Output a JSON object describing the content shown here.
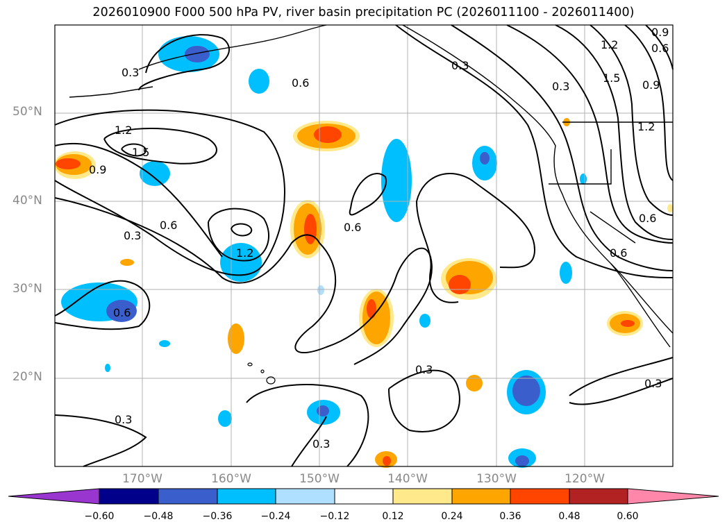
{
  "title": "2026010900 F000 500 hPa PV, river basin precipitation PC (2026011100 - 2026011400)",
  "lat_labels": [
    "50°N",
    "40°N",
    "30°N",
    "20°N"
  ],
  "lon_labels": [
    "170°W",
    "160°W",
    "150°W",
    "140°W",
    "130°W",
    "120°W"
  ],
  "colorbar": {
    "ticks": [
      "−0.60",
      "−0.48",
      "−0.36",
      "−0.24",
      "−0.12",
      "0.12",
      "0.24",
      "0.36",
      "0.48",
      "0.60"
    ],
    "colors": [
      "#9a36d0",
      "#00008b",
      "#3a5fcd",
      "#00bfff",
      "#b0e0ff",
      "#ffffff",
      "#ffe98a",
      "#ffa500",
      "#ff4500",
      "#b22222",
      "#ff88aa"
    ]
  },
  "contour_labels": [
    "0.3",
    "0.6",
    "0.3",
    "0.3",
    "1.2",
    "1.5",
    "0.9",
    "0.9",
    "1.2",
    "0.6",
    "1.5",
    "1.2",
    "0.9",
    "0.6",
    "0.6",
    "0.3",
    "0.6",
    "1.2",
    "0.6",
    "0.6",
    "0.3",
    "0.3",
    "0.3",
    "0.3"
  ],
  "colors": {
    "grid": "#b0b0b0",
    "contour": "#000000",
    "orange": "#ffa500",
    "red": "#ff4500",
    "yellow": "#ffe98a",
    "cyan": "#00bfff",
    "lightblue": "#b0e0ff",
    "blue": "#3a5fcd"
  }
}
